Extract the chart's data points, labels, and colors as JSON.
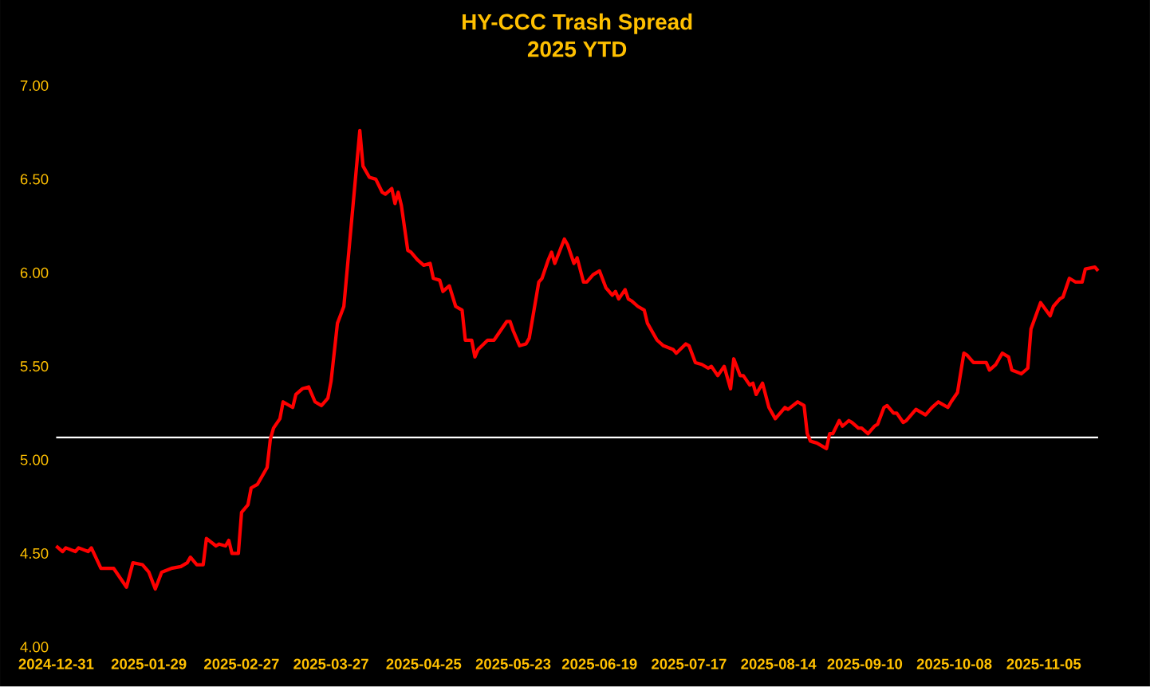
{
  "chart_data": {
    "type": "line",
    "title": "HY-CCC Trash Spread",
    "subtitle": "2025 YTD",
    "x": [
      "2024-12-31",
      "2025-01-02",
      "2025-01-03",
      "2025-01-06",
      "2025-01-07",
      "2025-01-10",
      "2025-01-11",
      "2025-01-14",
      "2025-01-18",
      "2025-01-22",
      "2025-01-24",
      "2025-01-27",
      "2025-01-29",
      "2025-01-31",
      "2025-02-02",
      "2025-02-05",
      "2025-02-08",
      "2025-02-10",
      "2025-02-11",
      "2025-02-13",
      "2025-02-15",
      "2025-02-16",
      "2025-02-19",
      "2025-02-20",
      "2025-02-22",
      "2025-02-23",
      "2025-02-24",
      "2025-02-26",
      "2025-02-27",
      "2025-03-01",
      "2025-03-02",
      "2025-03-04",
      "2025-03-06",
      "2025-03-07",
      "2025-03-08",
      "2025-03-09",
      "2025-03-11",
      "2025-03-12",
      "2025-03-15",
      "2025-03-16",
      "2025-03-18",
      "2025-03-20",
      "2025-03-22",
      "2025-03-24",
      "2025-03-26",
      "2025-03-27",
      "2025-03-29",
      "2025-03-31",
      "2025-04-05",
      "2025-04-06",
      "2025-04-08",
      "2025-04-10",
      "2025-04-12",
      "2025-04-13",
      "2025-04-15",
      "2025-04-16",
      "2025-04-17",
      "2025-04-18",
      "2025-04-20",
      "2025-04-21",
      "2025-04-23",
      "2025-04-25",
      "2025-04-27",
      "2025-04-28",
      "2025-04-30",
      "2025-05-01",
      "2025-05-03",
      "2025-05-05",
      "2025-05-07",
      "2025-05-08",
      "2025-05-10",
      "2025-05-11",
      "2025-05-12",
      "2025-05-15",
      "2025-05-17",
      "2025-05-19",
      "2025-05-21",
      "2025-05-22",
      "2025-05-23",
      "2025-05-25",
      "2025-05-27",
      "2025-05-28",
      "2025-05-31",
      "2025-06-01",
      "2025-06-03",
      "2025-06-04",
      "2025-06-05",
      "2025-06-08",
      "2025-06-09",
      "2025-06-11",
      "2025-06-12",
      "2025-06-14",
      "2025-06-15",
      "2025-06-17",
      "2025-06-19",
      "2025-06-21",
      "2025-06-23",
      "2025-06-24",
      "2025-06-25",
      "2025-06-27",
      "2025-06-28",
      "2025-06-29",
      "2025-07-01",
      "2025-07-03",
      "2025-07-04",
      "2025-07-07",
      "2025-07-09",
      "2025-07-12",
      "2025-07-13",
      "2025-07-16",
      "2025-07-17",
      "2025-07-19",
      "2025-07-21",
      "2025-07-23",
      "2025-07-24",
      "2025-07-26",
      "2025-07-28",
      "2025-07-30",
      "2025-07-31",
      "2025-08-02",
      "2025-08-03",
      "2025-08-05",
      "2025-08-06",
      "2025-08-07",
      "2025-08-09",
      "2025-08-11",
      "2025-08-13",
      "2025-08-16",
      "2025-08-17",
      "2025-08-20",
      "2025-08-22",
      "2025-08-23",
      "2025-08-24",
      "2025-08-26",
      "2025-08-29",
      "2025-08-30",
      "2025-08-31",
      "2025-09-02",
      "2025-09-03",
      "2025-09-05",
      "2025-09-06",
      "2025-09-08",
      "2025-09-09",
      "2025-09-11",
      "2025-09-13",
      "2025-09-14",
      "2025-09-16",
      "2025-09-17",
      "2025-09-19",
      "2025-09-20",
      "2025-09-22",
      "2025-09-23",
      "2025-09-26",
      "2025-09-29",
      "2025-10-01",
      "2025-10-03",
      "2025-10-04",
      "2025-10-06",
      "2025-10-07",
      "2025-10-09",
      "2025-10-11",
      "2025-10-12",
      "2025-10-14",
      "2025-10-18",
      "2025-10-19",
      "2025-10-21",
      "2025-10-23",
      "2025-10-25",
      "2025-10-26",
      "2025-10-29",
      "2025-10-31",
      "2025-11-01",
      "2025-11-04",
      "2025-11-07",
      "2025-11-08",
      "2025-11-10",
      "2025-11-11",
      "2025-11-13",
      "2025-11-15",
      "2025-11-17",
      "2025-11-18",
      "2025-11-21",
      "2025-11-22"
    ],
    "series": [
      {
        "color": "#ff0000",
        "values": [
          4.54,
          4.51,
          4.53,
          4.51,
          4.53,
          4.51,
          4.53,
          4.42,
          4.42,
          4.32,
          4.45,
          4.44,
          4.4,
          4.31,
          4.4,
          4.42,
          4.43,
          4.45,
          4.48,
          4.44,
          4.44,
          4.58,
          4.54,
          4.55,
          4.54,
          4.57,
          4.5,
          4.5,
          4.72,
          4.76,
          4.85,
          4.87,
          4.93,
          4.96,
          5.11,
          5.17,
          5.22,
          5.31,
          5.28,
          5.35,
          5.38,
          5.39,
          5.31,
          5.29,
          5.33,
          5.42,
          5.73,
          5.82,
          6.76,
          6.57,
          6.51,
          6.5,
          6.43,
          6.42,
          6.45,
          6.37,
          6.43,
          6.36,
          6.12,
          6.11,
          6.07,
          6.04,
          6.05,
          5.97,
          5.96,
          5.9,
          5.93,
          5.82,
          5.8,
          5.64,
          5.64,
          5.55,
          5.59,
          5.64,
          5.64,
          5.69,
          5.74,
          5.74,
          5.69,
          5.61,
          5.62,
          5.65,
          5.95,
          5.97,
          6.07,
          6.11,
          6.05,
          6.18,
          6.15,
          6.05,
          6.08,
          5.95,
          5.95,
          5.99,
          6.01,
          5.92,
          5.88,
          5.9,
          5.86,
          5.91,
          5.86,
          5.85,
          5.82,
          5.8,
          5.73,
          5.64,
          5.61,
          5.59,
          5.57,
          5.62,
          5.61,
          5.52,
          5.51,
          5.49,
          5.5,
          5.45,
          5.5,
          5.38,
          5.54,
          5.45,
          5.45,
          5.4,
          5.41,
          5.35,
          5.41,
          5.28,
          5.22,
          5.28,
          5.27,
          5.31,
          5.29,
          5.14,
          5.1,
          5.09,
          5.06,
          5.14,
          5.14,
          5.21,
          5.18,
          5.21,
          5.2,
          5.17,
          5.17,
          5.14,
          5.18,
          5.19,
          5.28,
          5.29,
          5.25,
          5.25,
          5.2,
          5.21,
          5.27,
          5.24,
          5.28,
          5.31,
          5.3,
          5.28,
          5.31,
          5.36,
          5.57,
          5.56,
          5.52,
          5.52,
          5.48,
          5.51,
          5.57,
          5.55,
          5.48,
          5.46,
          5.49,
          5.7,
          5.84,
          5.77,
          5.82,
          5.86,
          5.87,
          5.97,
          5.95,
          5.95,
          6.02,
          6.03,
          6.01
        ]
      }
    ],
    "xlim": [
      "2024-12-31",
      "2025-11-22"
    ],
    "xticks": [
      "2024-12-31",
      "2025-01-29",
      "2025-02-27",
      "2025-03-27",
      "2025-04-25",
      "2025-05-23",
      "2025-06-19",
      "2025-07-17",
      "2025-08-14",
      "2025-09-10",
      "2025-10-08",
      "2025-11-05"
    ],
    "ylim": [
      4,
      7
    ],
    "yticks": [
      {
        "value": 4,
        "label": "4.00"
      },
      {
        "value": 4.5,
        "label": "4.50"
      },
      {
        "value": 5,
        "label": "5.00"
      },
      {
        "value": 5.5,
        "label": "5.50"
      },
      {
        "value": 6,
        "label": "6.00"
      },
      {
        "value": 6.5,
        "label": "6.50"
      },
      {
        "value": 7,
        "label": "7.00"
      }
    ],
    "ref_lines": [
      {
        "axis": "y",
        "value": 5.12,
        "color": "#ffffff"
      }
    ],
    "marker": "none",
    "line_style": "solid"
  }
}
